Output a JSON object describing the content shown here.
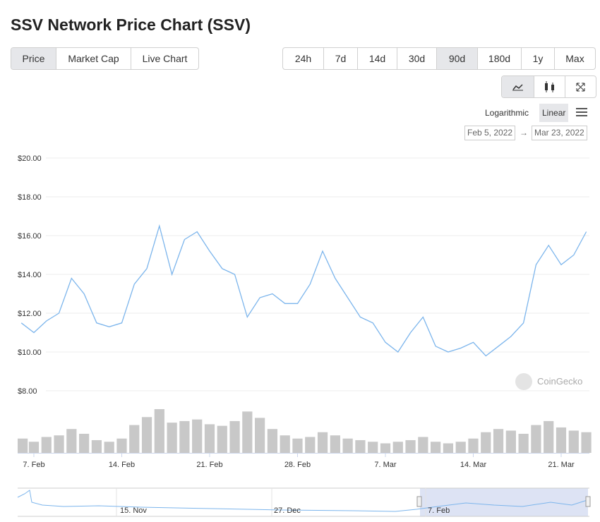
{
  "chart_data": {
    "type": "line",
    "title": "SSV Network Price Chart (SSV)",
    "x": [
      "2022-02-06",
      "2022-02-07",
      "2022-02-08",
      "2022-02-09",
      "2022-02-10",
      "2022-02-11",
      "2022-02-12",
      "2022-02-13",
      "2022-02-14",
      "2022-02-15",
      "2022-02-16",
      "2022-02-17",
      "2022-02-18",
      "2022-02-19",
      "2022-02-20",
      "2022-02-21",
      "2022-02-22",
      "2022-02-23",
      "2022-02-24",
      "2022-02-25",
      "2022-02-26",
      "2022-02-27",
      "2022-02-28",
      "2022-03-01",
      "2022-03-02",
      "2022-03-03",
      "2022-03-04",
      "2022-03-05",
      "2022-03-06",
      "2022-03-07",
      "2022-03-08",
      "2022-03-09",
      "2022-03-10",
      "2022-03-11",
      "2022-03-12",
      "2022-03-13",
      "2022-03-14",
      "2022-03-15",
      "2022-03-16",
      "2022-03-17",
      "2022-03-18",
      "2022-03-19",
      "2022-03-20",
      "2022-03-21",
      "2022-03-22",
      "2022-03-23"
    ],
    "values": [
      11.5,
      11.0,
      11.6,
      12.0,
      13.8,
      13.0,
      11.5,
      11.3,
      11.5,
      13.5,
      14.3,
      16.5,
      14.0,
      15.8,
      16.2,
      15.2,
      14.3,
      14.0,
      11.8,
      12.8,
      13.0,
      12.5,
      12.5,
      13.5,
      15.2,
      13.8,
      12.8,
      11.8,
      11.5,
      10.5,
      10.0,
      11.0,
      11.8,
      10.3,
      10.0,
      10.2,
      10.5,
      9.8,
      10.3,
      10.8,
      11.5,
      14.5,
      15.5,
      14.5,
      15.0,
      16.2
    ],
    "volume": [
      18,
      14,
      20,
      22,
      30,
      24,
      16,
      14,
      18,
      35,
      45,
      55,
      38,
      40,
      42,
      36,
      34,
      40,
      52,
      44,
      30,
      22,
      18,
      20,
      26,
      22,
      18,
      16,
      14,
      12,
      14,
      16,
      20,
      14,
      12,
      14,
      18,
      26,
      30,
      28,
      24,
      35,
      40,
      32,
      28,
      26
    ],
    "color": "#7cb5ec",
    "volume_color": "#c8c8c8",
    "xlim": [
      "2022-02-05T17:00:00Z",
      "2022-03-23T06:00:00Z"
    ],
    "xticks": [
      {
        "value": "2022-02-07",
        "label": "7. Feb"
      },
      {
        "value": "2022-02-14",
        "label": "14. Feb"
      },
      {
        "value": "2022-02-21",
        "label": "21. Feb"
      },
      {
        "value": "2022-02-28",
        "label": "28. Feb"
      },
      {
        "value": "2022-03-07",
        "label": "7. Mar"
      },
      {
        "value": "2022-03-14",
        "label": "14. Mar"
      },
      {
        "value": "2022-03-21",
        "label": "21. Mar"
      }
    ],
    "ylim": [
      8,
      20
    ],
    "yticks": [
      {
        "value": 8,
        "label": "$8.00"
      },
      {
        "value": 10,
        "label": "$10.00"
      },
      {
        "value": 12,
        "label": "$12.00"
      },
      {
        "value": 14,
        "label": "$14.00"
      },
      {
        "value": 16,
        "label": "$16.00"
      },
      {
        "value": 18,
        "label": "$18.00"
      },
      {
        "value": 20,
        "label": "$20.00"
      }
    ],
    "grid": true
  },
  "ui": {
    "tabs": [
      "Price",
      "Market Cap",
      "Live Chart"
    ],
    "ranges": [
      "24h",
      "7d",
      "14d",
      "30d",
      "90d",
      "180d",
      "1y",
      "Max"
    ],
    "scale_options": [
      "Logarithmic",
      "Linear"
    ],
    "date_from": "Feb 5, 2022",
    "arrow": "→",
    "date_to": "Mar 23, 2022",
    "watermark": "CoinGecko",
    "navigator_labels": [
      "15. Nov",
      "27. Dec",
      "7. Feb"
    ]
  }
}
